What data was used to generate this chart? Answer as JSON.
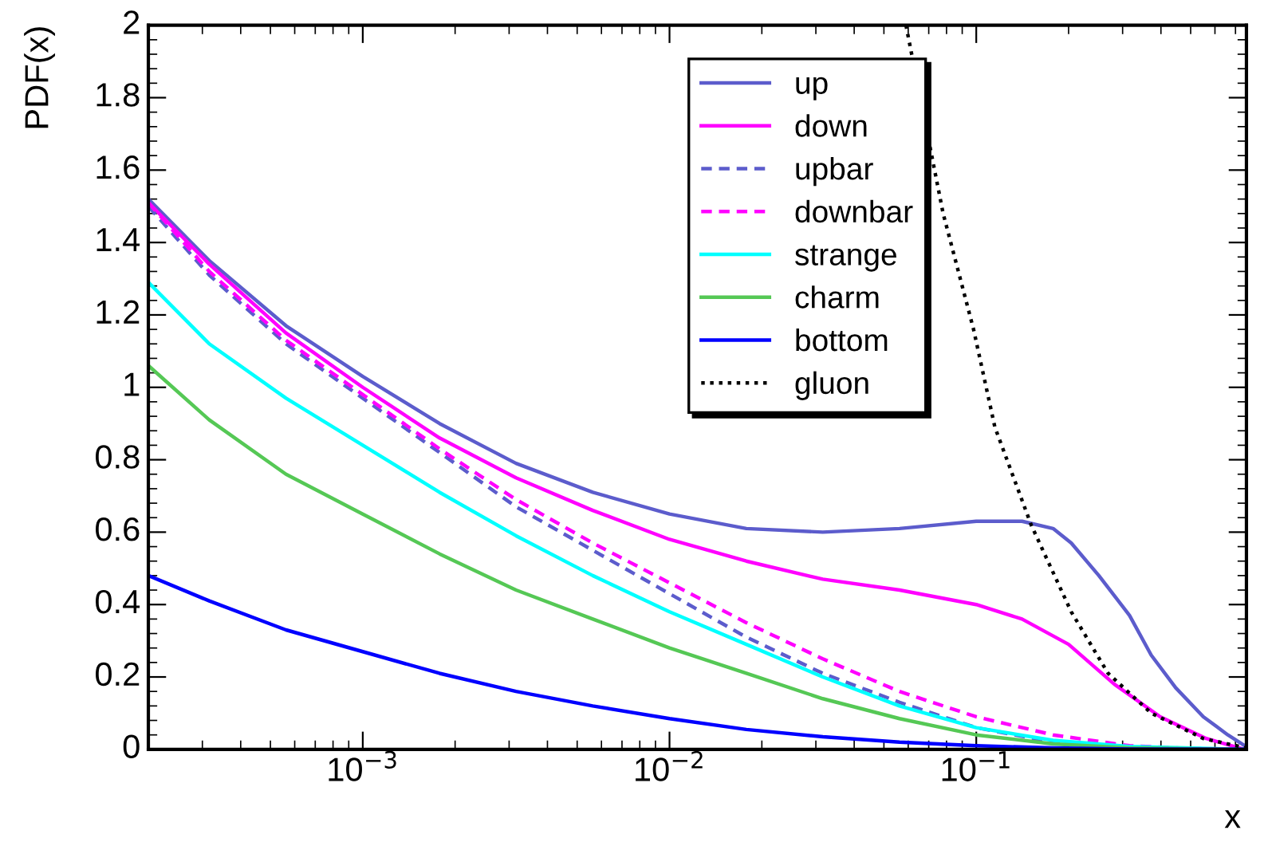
{
  "chart_data": {
    "type": "line",
    "xlabel": "x",
    "ylabel": "PDF(x)",
    "log": "x",
    "grid": false,
    "legend": "top",
    "marker": "none",
    "xlim": [
      0.0002,
      0.76
    ],
    "ylim": [
      0,
      2
    ],
    "xticks": [
      {
        "value": 0.001,
        "label": "10$^{−3}$"
      },
      {
        "value": 0.01,
        "label": "10$^{−2}$"
      },
      {
        "value": 0.1,
        "label": "10$^{−1}$"
      }
    ],
    "yticks": [
      0,
      0.2,
      0.4,
      0.6,
      0.8,
      1,
      1.2,
      1.4,
      1.6,
      1.8,
      2
    ],
    "series": [
      {
        "name": "up",
        "color": "#5c5ccc",
        "line_style": "solid",
        "x": [
          0.0002,
          0.000316,
          0.000562,
          0.001,
          0.00178,
          0.00316,
          0.00562,
          0.01,
          0.0178,
          0.0316,
          0.0562,
          0.1,
          0.141,
          0.178,
          0.204,
          0.251,
          0.316,
          0.372,
          0.447,
          0.55,
          0.661,
          0.75
        ],
        "values": [
          1.52,
          1.35,
          1.17,
          1.03,
          0.9,
          0.79,
          0.71,
          0.65,
          0.61,
          0.6,
          0.61,
          0.63,
          0.63,
          0.61,
          0.57,
          0.48,
          0.37,
          0.26,
          0.17,
          0.09,
          0.04,
          0.01
        ]
      },
      {
        "name": "down",
        "color": "#ff00ff",
        "line_style": "solid",
        "x": [
          0.0002,
          0.000316,
          0.000562,
          0.001,
          0.00178,
          0.00316,
          0.00562,
          0.01,
          0.0178,
          0.0316,
          0.0562,
          0.1,
          0.141,
          0.2,
          0.282,
          0.398,
          0.562,
          0.75
        ],
        "values": [
          1.51,
          1.34,
          1.15,
          1.0,
          0.86,
          0.75,
          0.66,
          0.58,
          0.52,
          0.47,
          0.44,
          0.4,
          0.36,
          0.29,
          0.18,
          0.09,
          0.03,
          0.0
        ]
      },
      {
        "name": "upbar",
        "color": "#5c5ccc",
        "line_style": "dashed",
        "x": [
          0.0002,
          0.000316,
          0.000562,
          0.001,
          0.00178,
          0.00316,
          0.00562,
          0.01,
          0.0178,
          0.0316,
          0.0562,
          0.1,
          0.178,
          0.316,
          0.75
        ],
        "values": [
          1.5,
          1.31,
          1.12,
          0.97,
          0.82,
          0.67,
          0.55,
          0.43,
          0.31,
          0.21,
          0.13,
          0.06,
          0.02,
          0.005,
          0.0
        ]
      },
      {
        "name": "downbar",
        "color": "#ff00ff",
        "line_style": "dashed",
        "x": [
          0.0002,
          0.000316,
          0.000562,
          0.001,
          0.00178,
          0.00316,
          0.00562,
          0.01,
          0.0178,
          0.0316,
          0.0562,
          0.1,
          0.178,
          0.316,
          0.501,
          0.75
        ],
        "values": [
          1.51,
          1.32,
          1.13,
          0.98,
          0.83,
          0.69,
          0.57,
          0.46,
          0.35,
          0.25,
          0.16,
          0.09,
          0.04,
          0.01,
          0.002,
          0.0
        ]
      },
      {
        "name": "strange",
        "color": "#00ffff",
        "line_style": "solid",
        "x": [
          0.0002,
          0.000316,
          0.000562,
          0.001,
          0.00178,
          0.00316,
          0.00562,
          0.01,
          0.0178,
          0.0316,
          0.0562,
          0.1,
          0.178,
          0.316,
          0.75
        ],
        "values": [
          1.29,
          1.12,
          0.97,
          0.84,
          0.71,
          0.59,
          0.48,
          0.38,
          0.29,
          0.2,
          0.12,
          0.06,
          0.025,
          0.008,
          0.0
        ]
      },
      {
        "name": "charm",
        "color": "#55c855",
        "line_style": "solid",
        "x": [
          0.0002,
          0.000316,
          0.000562,
          0.001,
          0.00178,
          0.00316,
          0.00562,
          0.01,
          0.0178,
          0.0316,
          0.0562,
          0.1,
          0.178,
          0.316,
          0.75
        ],
        "values": [
          1.06,
          0.91,
          0.76,
          0.65,
          0.54,
          0.44,
          0.36,
          0.28,
          0.21,
          0.14,
          0.085,
          0.04,
          0.015,
          0.004,
          0.0
        ]
      },
      {
        "name": "bottom",
        "color": "#0000ff",
        "line_style": "solid",
        "x": [
          0.0002,
          0.000316,
          0.000562,
          0.001,
          0.00178,
          0.00316,
          0.00562,
          0.01,
          0.0178,
          0.0316,
          0.0562,
          0.1,
          0.178,
          0.316,
          0.75
        ],
        "values": [
          0.48,
          0.41,
          0.33,
          0.27,
          0.21,
          0.16,
          0.12,
          0.085,
          0.055,
          0.035,
          0.02,
          0.01,
          0.004,
          0.001,
          0.0
        ]
      },
      {
        "name": "gluon",
        "color": "#000000",
        "line_style": "dotted",
        "x": [
          0.059,
          0.078,
          0.098,
          0.115,
          0.151,
          0.204,
          0.269,
          0.372,
          0.55,
          0.75
        ],
        "values": [
          2.0,
          1.48,
          1.16,
          0.89,
          0.62,
          0.38,
          0.21,
          0.1,
          0.03,
          0.005
        ]
      }
    ]
  }
}
